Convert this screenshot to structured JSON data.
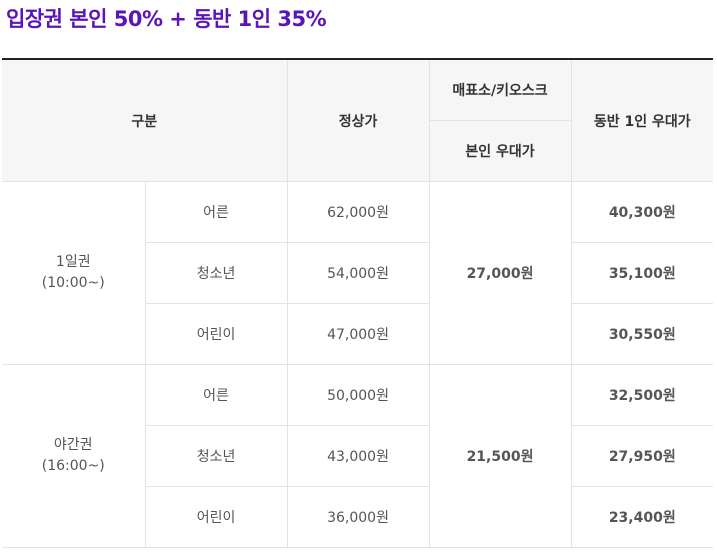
{
  "title": "입장권 본인 50% + 동반 1인 35%",
  "accent_color": "#5a14b8",
  "table": {
    "headers": {
      "category": "구분",
      "regular_price": "정상가",
      "kiosk_group": "매표소/키오스크",
      "self_discount": "본인 우대가",
      "companion_discount": "동반 1인 우대가"
    },
    "groups": [
      {
        "name": "1일권",
        "time": "(10:00~)",
        "self_price": "27,000원",
        "rows": [
          {
            "type": "어른",
            "regular": "62,000원",
            "companion": "40,300원"
          },
          {
            "type": "청소년",
            "regular": "54,000원",
            "companion": "35,100원"
          },
          {
            "type": "어린이",
            "regular": "47,000원",
            "companion": "30,550원"
          }
        ]
      },
      {
        "name": "야간권",
        "time": "(16:00~)",
        "self_price": "21,500원",
        "rows": [
          {
            "type": "어른",
            "regular": "50,000원",
            "companion": "32,500원"
          },
          {
            "type": "청소년",
            "regular": "43,000원",
            "companion": "27,950원"
          },
          {
            "type": "어린이",
            "regular": "36,000원",
            "companion": "23,400원"
          }
        ]
      }
    ]
  }
}
